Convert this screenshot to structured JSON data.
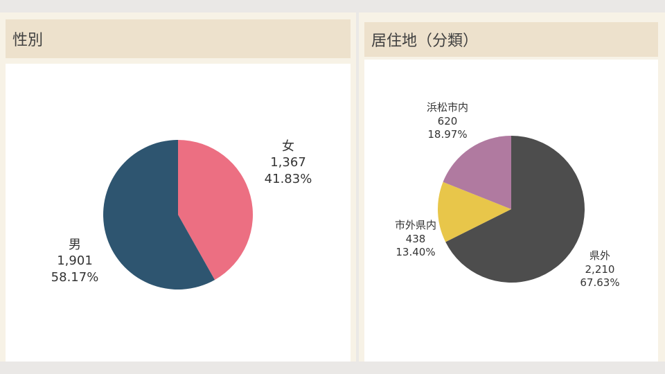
{
  "panels": {
    "gender": {
      "title": "性別"
    },
    "residence": {
      "title": "居住地（分類）"
    }
  },
  "chart_data": [
    {
      "type": "pie",
      "title": "性別",
      "slices": [
        {
          "label": "女",
          "value": 1367,
          "value_text": "1,367",
          "percent": 41.83,
          "percent_text": "41.83%",
          "color": "#ec6f82"
        },
        {
          "label": "男",
          "value": 1901,
          "value_text": "1,901",
          "percent": 58.17,
          "percent_text": "58.17%",
          "color": "#2e5570"
        }
      ]
    },
    {
      "type": "pie",
      "title": "居住地（分類）",
      "slices": [
        {
          "label": "県外",
          "value": 2210,
          "value_text": "2,210",
          "percent": 67.63,
          "percent_text": "67.63%",
          "color": "#4d4d4d"
        },
        {
          "label": "市外県内",
          "value": 438,
          "value_text": "438",
          "percent": 13.4,
          "percent_text": "13.40%",
          "color": "#e8c64a"
        },
        {
          "label": "浜松市内",
          "value": 620,
          "value_text": "620",
          "percent": 18.97,
          "percent_text": "18.97%",
          "color": "#b07aa0"
        }
      ]
    }
  ]
}
